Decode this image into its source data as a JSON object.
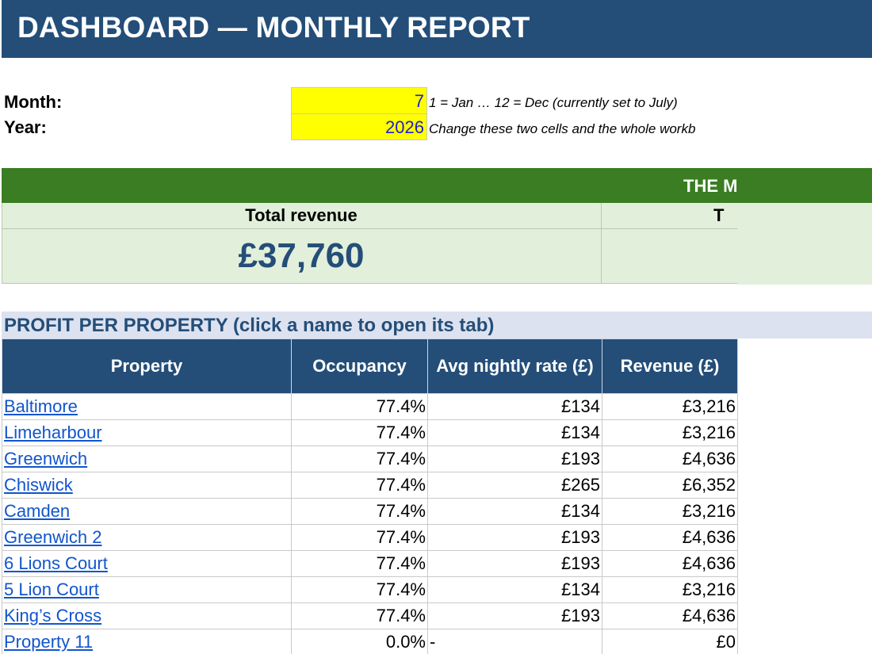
{
  "title": "DASHBOARD — MONTHLY REPORT",
  "inputs": {
    "month_label": "Month:",
    "month_value": "7",
    "month_note": "1 = Jan … 12 = Dec   (currently set to July)",
    "year_label": "Year:",
    "year_value": "2026",
    "year_note": "Change these two cells and the whole workb"
  },
  "summary": {
    "header_text": "THE M",
    "kpi_label": "Total revenue",
    "kpi_value": "£37,760",
    "kpi2_label": "T"
  },
  "section": {
    "title": "PROFIT PER PROPERTY  (click a name to open its tab)"
  },
  "table": {
    "headers": [
      "Property",
      "Occupancy",
      "Avg nightly rate (£)",
      "Revenue (£)"
    ],
    "rows": [
      {
        "property": "Baltimore",
        "occupancy": "77.4%",
        "rate": "£134",
        "revenue": "£3,216"
      },
      {
        "property": "Limeharbour",
        "occupancy": "77.4%",
        "rate": "£134",
        "revenue": "£3,216"
      },
      {
        "property": "Greenwich",
        "occupancy": "77.4%",
        "rate": "£193",
        "revenue": "£4,636"
      },
      {
        "property": "Chiswick",
        "occupancy": "77.4%",
        "rate": "£265",
        "revenue": "£6,352"
      },
      {
        "property": "Camden",
        "occupancy": "77.4%",
        "rate": "£134",
        "revenue": "£3,216"
      },
      {
        "property": "Greenwich 2",
        "occupancy": "77.4%",
        "rate": "£193",
        "revenue": "£4,636"
      },
      {
        "property": "6 Lions Court",
        "occupancy": "77.4%",
        "rate": "£193",
        "revenue": "£4,636"
      },
      {
        "property": "5 Lion Court",
        "occupancy": "77.4%",
        "rate": "£134",
        "revenue": "£3,216"
      },
      {
        "property": "King’s Cross",
        "occupancy": "77.4%",
        "rate": "£193",
        "revenue": "£4,636"
      },
      {
        "property": "Property 11",
        "occupancy": "0.0%",
        "rate": "-",
        "revenue": "£0"
      }
    ]
  },
  "colors": {
    "title_bar": "#244e78",
    "input_cell": "#ffff00",
    "summary_header": "#3a7d22",
    "summary_body": "#e2efda",
    "section_band": "#dde2f0",
    "link": "#1155cc"
  }
}
